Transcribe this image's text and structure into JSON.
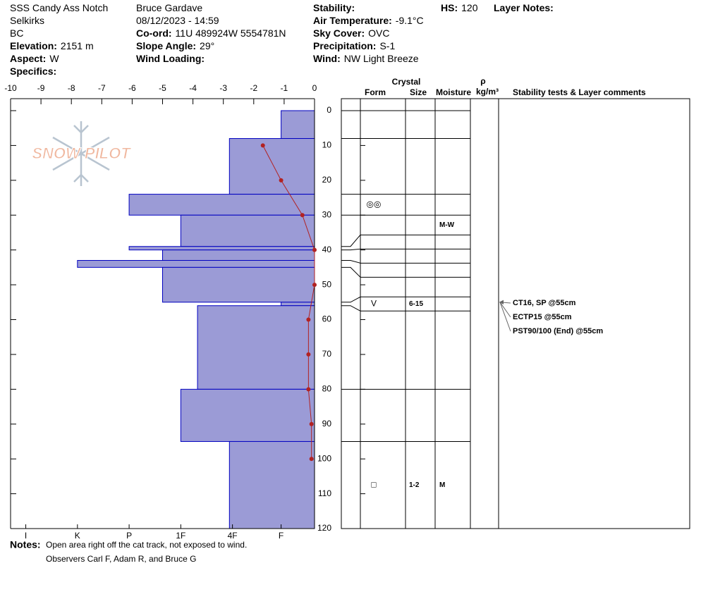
{
  "header": {
    "columns": [
      [
        {
          "text": "SSS Candy Ass Notch"
        },
        {
          "text": "Selkirks"
        },
        {
          "text": "BC"
        },
        {
          "label": "Elevation:",
          "value": "2151 m"
        },
        {
          "label": "Aspect:",
          "value": "W"
        },
        {
          "label": "Specifics:"
        }
      ],
      [
        {
          "text": "Bruce Gardave"
        },
        {
          "text": "08/12/2023 - 14:59"
        },
        {
          "label": "Co-ord:",
          "value": "11U 489924W 5554781N"
        },
        {
          "label": "Slope Angle:",
          "value": "29°"
        },
        {
          "label": "Wind Loading:"
        }
      ],
      [
        {
          "label": "Stability:"
        },
        {
          "label": "Air Temperature:",
          "value": "-9.1°C"
        },
        {
          "label": "Sky Cover:",
          "value": "OVC"
        },
        {
          "label": "Precipitation:",
          "value": "S-1"
        },
        {
          "label": "Wind:",
          "value": "NW Light Breeze"
        }
      ],
      [
        {
          "label": "HS:",
          "value": "120"
        }
      ],
      [
        {
          "label": "Layer Notes:"
        }
      ]
    ]
  },
  "logo": "SNOW PILOT",
  "chart_data": {
    "type": "snow-profile",
    "xlim": [
      -10,
      0
    ],
    "xticks": [
      -10,
      -9,
      -8,
      -7,
      -6,
      -5,
      -4,
      -3,
      -2,
      -1,
      0
    ],
    "hardness_ticks": [
      {
        "value": -9.5,
        "label": "I"
      },
      {
        "value": -7.8,
        "label": "K"
      },
      {
        "value": -6.1,
        "label": "P"
      },
      {
        "value": -4.4,
        "label": "1F"
      },
      {
        "value": -2.7,
        "label": "4F"
      },
      {
        "value": -1.1,
        "label": "F"
      }
    ],
    "depth_lim": [
      0,
      120
    ],
    "depth_ticks": [
      0,
      10,
      20,
      30,
      40,
      50,
      60,
      70,
      80,
      90,
      100,
      110,
      120
    ],
    "bar_color": "#9b9bd6",
    "bar_edge": "#0000c0",
    "temperature_color": "#b22222",
    "layers": [
      {
        "top": 0,
        "bottom": 8,
        "hardness": -1.1
      },
      {
        "top": 8,
        "bottom": 24,
        "hardness": -2.8
      },
      {
        "top": 24,
        "bottom": 30,
        "hardness": -6.1,
        "form": "◎◎"
      },
      {
        "top": 30,
        "bottom": 39,
        "hardness": -4.4,
        "moisture": "M-W"
      },
      {
        "top": 39,
        "bottom": 40,
        "hardness": -6.1
      },
      {
        "top": 40,
        "bottom": 43,
        "hardness": -5.0
      },
      {
        "top": 43,
        "bottom": 45,
        "hardness": -7.8
      },
      {
        "top": 45,
        "bottom": 55,
        "hardness": -5.0
      },
      {
        "top": 55,
        "bottom": 56,
        "hardness": -1.1,
        "form": "V",
        "size": "6-15"
      },
      {
        "top": 56,
        "bottom": 80,
        "hardness": -3.85
      },
      {
        "top": 80,
        "bottom": 95,
        "hardness": -4.4
      },
      {
        "top": 95,
        "bottom": 120,
        "hardness": -2.8,
        "form": "□",
        "size": "1-2",
        "moisture": "M"
      }
    ],
    "temperature": {
      "depth": [
        10,
        20,
        30,
        40,
        50,
        60,
        70,
        80,
        90,
        100
      ],
      "values": [
        -1.7,
        -1.1,
        -0.4,
        0,
        0,
        -0.2,
        -0.2,
        -0.2,
        -0.1,
        -0.1
      ]
    },
    "column_headers": {
      "crystal": "Crystal",
      "form": "Form",
      "size": "Size",
      "moisture": "Moisture",
      "rho": "ρ",
      "density_unit": "kg/m³",
      "comments": "Stability tests & Layer comments"
    },
    "stability_tests": [
      {
        "text": "CT16, SP @55cm",
        "depth": 55
      },
      {
        "text": "ECTP15 @55cm",
        "depth": 55
      },
      {
        "text": "PST90/100 (End) @55cm",
        "depth": 55
      }
    ]
  },
  "notes": {
    "label": "Notes:",
    "lines": [
      "Open area right off the cat track, not exposed to wind.",
      "Observers Carl F, Adam R, and Bruce G"
    ]
  }
}
